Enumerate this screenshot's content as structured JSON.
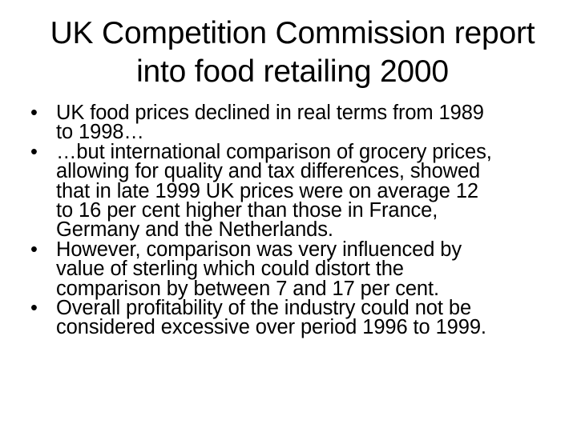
{
  "slide": {
    "title_lines": [
      "UK Competition Commission report",
      "into food retailing 2000"
    ],
    "bullet_glyph": "•",
    "bullets": [
      {
        "lines": [
          "UK food prices declined in real terms from 1989",
          "to 1998…"
        ]
      },
      {
        "lines": [
          "…but international comparison of grocery prices,",
          "allowing for quality and tax differences, showed",
          "that in late 1999 UK prices were on average 12",
          "to 16 per cent higher than those in France,",
          "Germany and the Netherlands."
        ]
      },
      {
        "lines": [
          "However, comparison was very influenced by",
          "value of sterling which could distort the",
          "comparison by between 7 and 17 per cent."
        ]
      },
      {
        "lines": [
          "Overall profitability of the industry could not be",
          "considered excessive over period 1996 to 1999."
        ]
      }
    ]
  }
}
